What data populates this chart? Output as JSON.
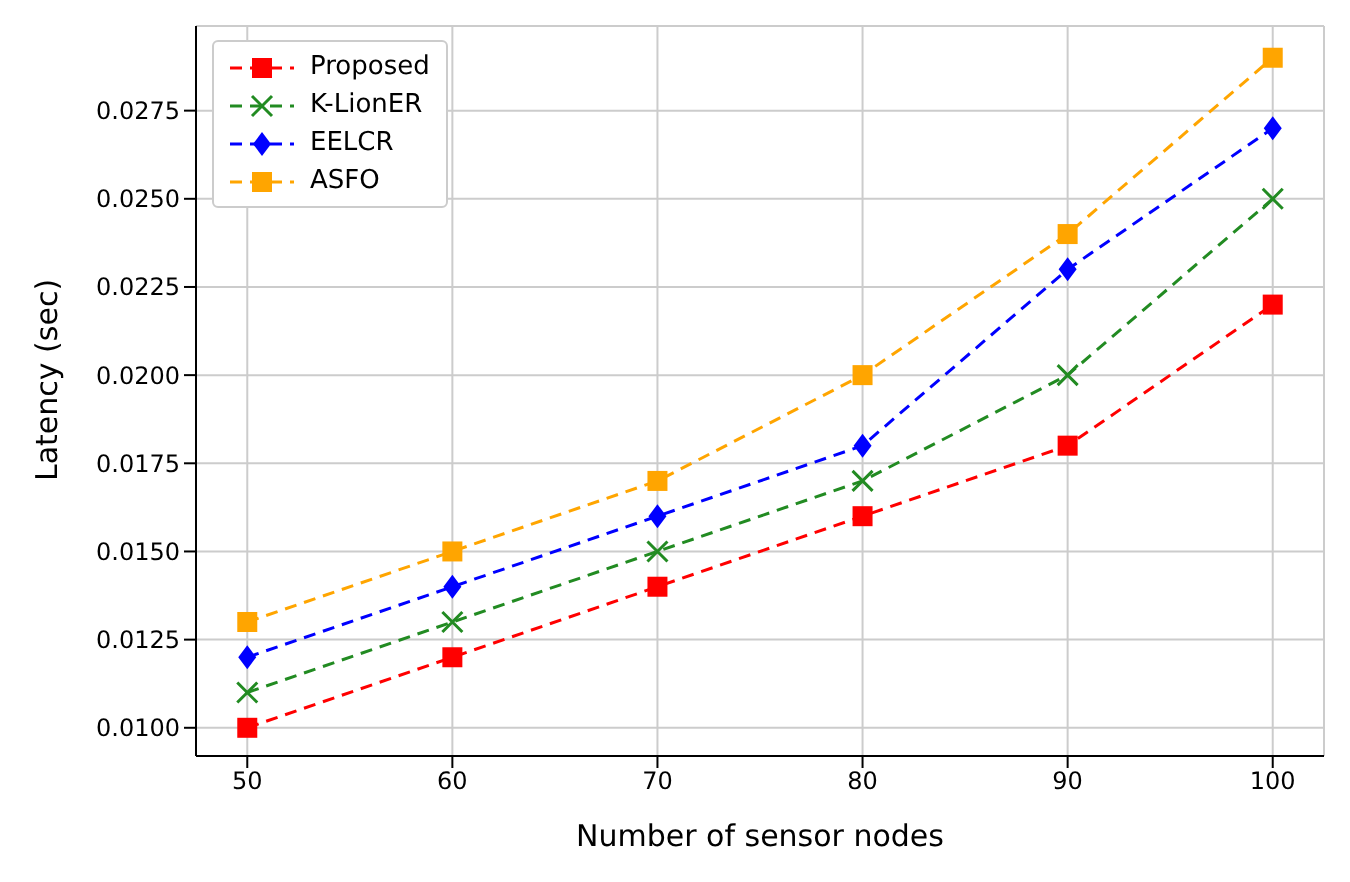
{
  "chart_data": {
    "type": "line",
    "xlabel": "Number of sensor nodes",
    "ylabel": "Latency (sec)",
    "x": [
      50,
      60,
      70,
      80,
      90,
      100
    ],
    "series": [
      {
        "name": "Proposed",
        "color": "#ff0000",
        "marker": "square",
        "values": [
          0.01,
          0.012,
          0.014,
          0.016,
          0.018,
          0.022
        ]
      },
      {
        "name": "K-LionER",
        "color": "#228b22",
        "marker": "cross",
        "values": [
          0.011,
          0.013,
          0.015,
          0.017,
          0.02,
          0.025
        ]
      },
      {
        "name": "EELCR",
        "color": "#0000ff",
        "marker": "diamond",
        "values": [
          0.012,
          0.014,
          0.016,
          0.018,
          0.023,
          0.027
        ]
      },
      {
        "name": "ASFO",
        "color": "#ffa500",
        "marker": "square",
        "values": [
          0.013,
          0.015,
          0.017,
          0.02,
          0.024,
          0.029
        ]
      }
    ],
    "xlim": [
      47.5,
      102.5
    ],
    "xticks": [
      50,
      60,
      70,
      80,
      90,
      100
    ],
    "ylim": [
      0.0092,
      0.0299
    ],
    "yticks": [
      {
        "value": 0.01,
        "label": "0.0100"
      },
      {
        "value": 0.0125,
        "label": "0.0125"
      },
      {
        "value": 0.015,
        "label": "0.0150"
      },
      {
        "value": 0.0175,
        "label": "0.0175"
      },
      {
        "value": 0.02,
        "label": "0.0200"
      },
      {
        "value": 0.0225,
        "label": "0.0225"
      },
      {
        "value": 0.025,
        "label": "0.0250"
      },
      {
        "value": 0.0275,
        "label": "0.0275"
      }
    ],
    "grid": true,
    "legend": "top left",
    "line_style": "dashed"
  }
}
